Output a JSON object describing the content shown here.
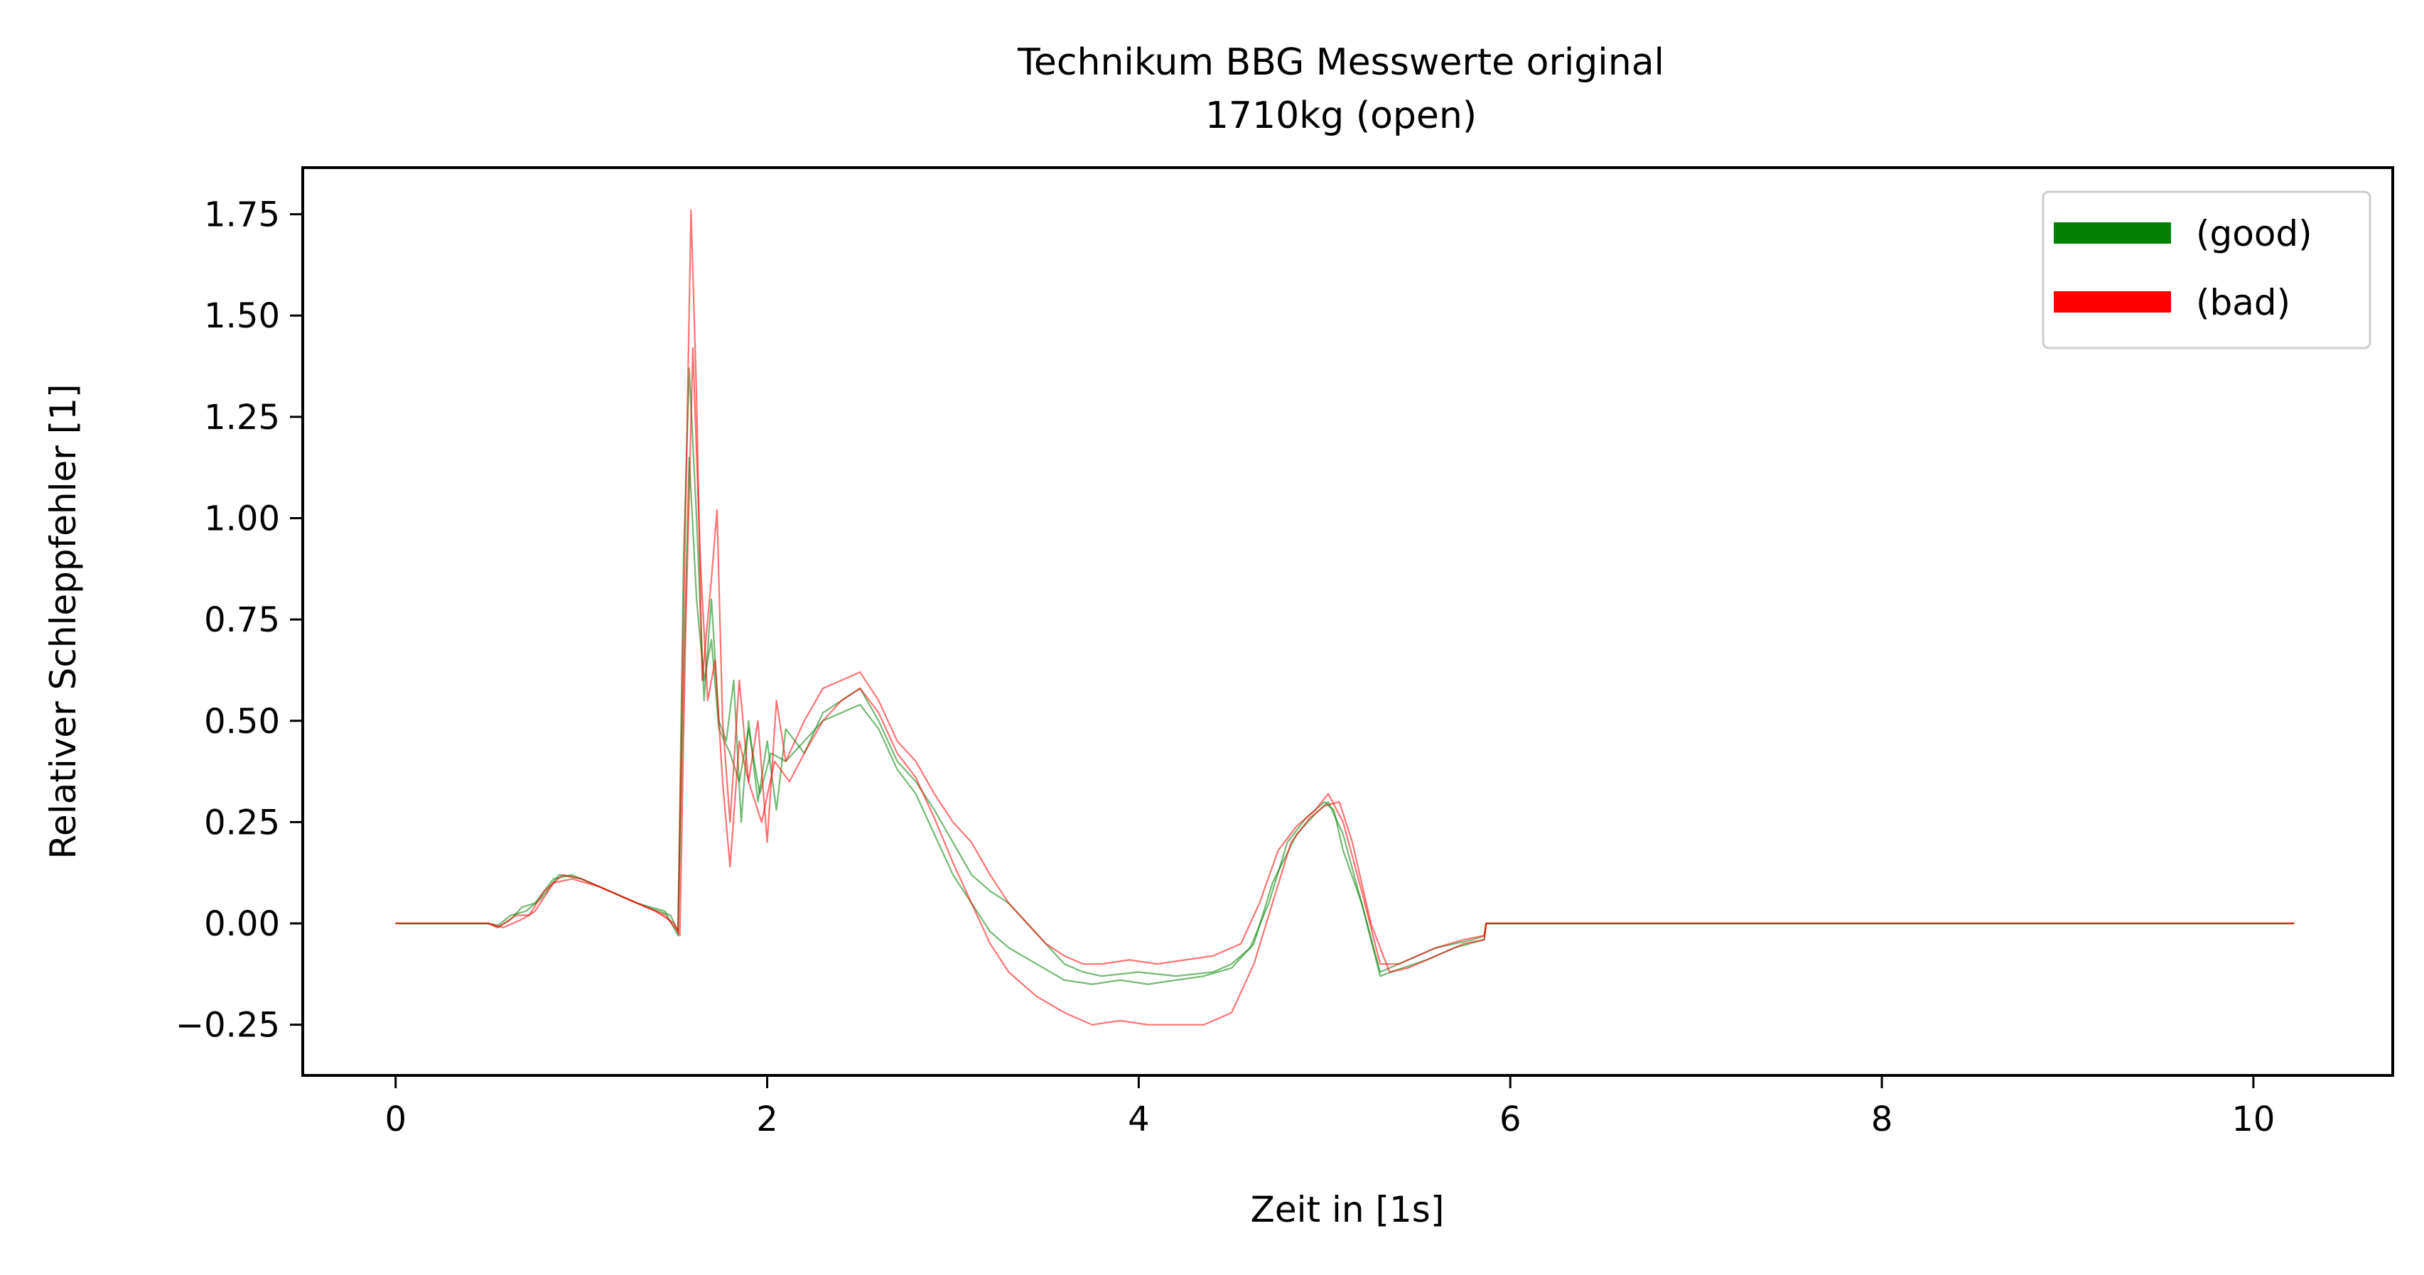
{
  "chart_data": {
    "type": "line",
    "title": "Technikum BBG Messwerte original",
    "subtitle": "1710kg (open)",
    "xlabel": "Zeit in [1s]",
    "ylabel": "Relativer Schleppfehler [1]",
    "xlim": [
      -0.5,
      10.75
    ],
    "ylim": [
      -0.375,
      1.865
    ],
    "xticks": [
      0,
      2,
      4,
      6,
      8,
      10
    ],
    "xtick_labels": [
      "0",
      "2",
      "4",
      "6",
      "8",
      "10"
    ],
    "yticks": [
      -0.25,
      0.0,
      0.25,
      0.5,
      0.75,
      1.0,
      1.25,
      1.5,
      1.75
    ],
    "ytick_labels": [
      "−0.25",
      "0.00",
      "0.25",
      "0.50",
      "0.75",
      "1.00",
      "1.25",
      "1.50",
      "1.75"
    ],
    "grid": false,
    "legend": {
      "placement": "top-right",
      "entries": [
        {
          "label": "(good)",
          "color": "#008000"
        },
        {
          "label": "(bad)",
          "color": "#ff0000"
        }
      ]
    },
    "series": [
      {
        "legend": "(good)",
        "color": "#008000",
        "points": [
          [
            0,
            0
          ],
          [
            0.5,
            0
          ],
          [
            0.55,
            -0.01
          ],
          [
            0.62,
            0.01
          ],
          [
            0.68,
            0.04
          ],
          [
            0.75,
            0.05
          ],
          [
            0.85,
            0.11
          ],
          [
            0.95,
            0.12
          ],
          [
            1.05,
            0.1
          ],
          [
            1.2,
            0.07
          ],
          [
            1.35,
            0.04
          ],
          [
            1.48,
            0.02
          ],
          [
            1.52,
            -0.02
          ],
          [
            1.55,
            0.9
          ],
          [
            1.58,
            1.37
          ],
          [
            1.62,
            1.0
          ],
          [
            1.66,
            0.55
          ],
          [
            1.7,
            0.8
          ],
          [
            1.74,
            0.5
          ],
          [
            1.78,
            0.45
          ],
          [
            1.82,
            0.6
          ],
          [
            1.86,
            0.25
          ],
          [
            1.9,
            0.5
          ],
          [
            1.95,
            0.3
          ],
          [
            2.0,
            0.45
          ],
          [
            2.05,
            0.28
          ],
          [
            2.1,
            0.48
          ],
          [
            2.2,
            0.42
          ],
          [
            2.3,
            0.52
          ],
          [
            2.4,
            0.55
          ],
          [
            2.5,
            0.58
          ],
          [
            2.6,
            0.5
          ],
          [
            2.7,
            0.4
          ],
          [
            2.8,
            0.35
          ],
          [
            2.9,
            0.28
          ],
          [
            3.0,
            0.2
          ],
          [
            3.1,
            0.12
          ],
          [
            3.2,
            0.08
          ],
          [
            3.3,
            0.05
          ],
          [
            3.4,
            0.0
          ],
          [
            3.5,
            -0.05
          ],
          [
            3.6,
            -0.1
          ],
          [
            3.7,
            -0.12
          ],
          [
            3.8,
            -0.13
          ],
          [
            4.0,
            -0.12
          ],
          [
            4.2,
            -0.13
          ],
          [
            4.4,
            -0.12
          ],
          [
            4.5,
            -0.1
          ],
          [
            4.6,
            -0.06
          ],
          [
            4.7,
            0.05
          ],
          [
            4.8,
            0.2
          ],
          [
            4.9,
            0.26
          ],
          [
            5.0,
            0.3
          ],
          [
            5.05,
            0.28
          ],
          [
            5.1,
            0.18
          ],
          [
            5.2,
            0.05
          ],
          [
            5.3,
            -0.12
          ],
          [
            5.4,
            -0.1
          ],
          [
            5.5,
            -0.08
          ],
          [
            5.6,
            -0.06
          ],
          [
            5.7,
            -0.05
          ],
          [
            5.8,
            -0.04
          ],
          [
            5.86,
            -0.03
          ],
          [
            5.87,
            0
          ],
          [
            10.22,
            0
          ]
        ]
      },
      {
        "legend": "(good)",
        "color": "#008000",
        "points": [
          [
            0,
            0
          ],
          [
            0.5,
            0
          ],
          [
            0.55,
            -0.005
          ],
          [
            0.62,
            0.02
          ],
          [
            0.7,
            0.03
          ],
          [
            0.78,
            0.06
          ],
          [
            0.88,
            0.12
          ],
          [
            1.0,
            0.11
          ],
          [
            1.15,
            0.08
          ],
          [
            1.3,
            0.05
          ],
          [
            1.45,
            0.03
          ],
          [
            1.52,
            -0.03
          ],
          [
            1.55,
            0.6
          ],
          [
            1.58,
            1.15
          ],
          [
            1.62,
            0.8
          ],
          [
            1.66,
            0.6
          ],
          [
            1.7,
            0.7
          ],
          [
            1.74,
            0.48
          ],
          [
            1.8,
            0.42
          ],
          [
            1.85,
            0.35
          ],
          [
            1.9,
            0.48
          ],
          [
            1.96,
            0.32
          ],
          [
            2.02,
            0.42
          ],
          [
            2.1,
            0.4
          ],
          [
            2.2,
            0.45
          ],
          [
            2.3,
            0.5
          ],
          [
            2.4,
            0.52
          ],
          [
            2.5,
            0.54
          ],
          [
            2.6,
            0.48
          ],
          [
            2.7,
            0.38
          ],
          [
            2.8,
            0.32
          ],
          [
            2.9,
            0.22
          ],
          [
            3.0,
            0.12
          ],
          [
            3.1,
            0.05
          ],
          [
            3.2,
            -0.02
          ],
          [
            3.3,
            -0.06
          ],
          [
            3.45,
            -0.1
          ],
          [
            3.6,
            -0.14
          ],
          [
            3.75,
            -0.15
          ],
          [
            3.9,
            -0.14
          ],
          [
            4.05,
            -0.15
          ],
          [
            4.2,
            -0.14
          ],
          [
            4.35,
            -0.13
          ],
          [
            4.5,
            -0.11
          ],
          [
            4.62,
            -0.05
          ],
          [
            4.72,
            0.1
          ],
          [
            4.85,
            0.22
          ],
          [
            4.95,
            0.27
          ],
          [
            5.02,
            0.3
          ],
          [
            5.1,
            0.22
          ],
          [
            5.2,
            0.05
          ],
          [
            5.3,
            -0.13
          ],
          [
            5.42,
            -0.11
          ],
          [
            5.55,
            -0.09
          ],
          [
            5.7,
            -0.06
          ],
          [
            5.86,
            -0.04
          ],
          [
            5.87,
            0
          ],
          [
            10.22,
            0
          ]
        ]
      },
      {
        "legend": "(bad)",
        "color": "#ff0000",
        "points": [
          [
            0,
            0
          ],
          [
            0.5,
            0
          ],
          [
            0.55,
            -0.01
          ],
          [
            0.65,
            0.02
          ],
          [
            0.72,
            0.02
          ],
          [
            0.8,
            0.08
          ],
          [
            0.9,
            0.12
          ],
          [
            1.0,
            0.11
          ],
          [
            1.15,
            0.08
          ],
          [
            1.3,
            0.05
          ],
          [
            1.45,
            0.02
          ],
          [
            1.52,
            -0.02
          ],
          [
            1.56,
            1.0
          ],
          [
            1.59,
            1.76
          ],
          [
            1.62,
            1.3
          ],
          [
            1.65,
            0.6
          ],
          [
            1.7,
            0.85
          ],
          [
            1.73,
            1.02
          ],
          [
            1.76,
            0.5
          ],
          [
            1.8,
            0.25
          ],
          [
            1.85,
            0.6
          ],
          [
            1.9,
            0.35
          ],
          [
            1.95,
            0.5
          ],
          [
            2.0,
            0.2
          ],
          [
            2.05,
            0.55
          ],
          [
            2.1,
            0.4
          ],
          [
            2.2,
            0.5
          ],
          [
            2.3,
            0.58
          ],
          [
            2.4,
            0.6
          ],
          [
            2.5,
            0.62
          ],
          [
            2.6,
            0.55
          ],
          [
            2.7,
            0.45
          ],
          [
            2.8,
            0.4
          ],
          [
            2.9,
            0.32
          ],
          [
            3.0,
            0.25
          ],
          [
            3.1,
            0.2
          ],
          [
            3.2,
            0.12
          ],
          [
            3.3,
            0.05
          ],
          [
            3.4,
            0.0
          ],
          [
            3.5,
            -0.05
          ],
          [
            3.6,
            -0.08
          ],
          [
            3.7,
            -0.1
          ],
          [
            3.8,
            -0.1
          ],
          [
            3.95,
            -0.09
          ],
          [
            4.1,
            -0.1
          ],
          [
            4.25,
            -0.09
          ],
          [
            4.4,
            -0.08
          ],
          [
            4.55,
            -0.05
          ],
          [
            4.65,
            0.05
          ],
          [
            4.75,
            0.18
          ],
          [
            4.85,
            0.24
          ],
          [
            4.95,
            0.28
          ],
          [
            5.02,
            0.32
          ],
          [
            5.1,
            0.25
          ],
          [
            5.2,
            0.08
          ],
          [
            5.3,
            -0.1
          ],
          [
            5.4,
            -0.1
          ],
          [
            5.5,
            -0.08
          ],
          [
            5.6,
            -0.06
          ],
          [
            5.75,
            -0.04
          ],
          [
            5.86,
            -0.03
          ],
          [
            5.87,
            0
          ],
          [
            10.22,
            0
          ]
        ]
      },
      {
        "legend": "(bad)",
        "color": "#ff0000",
        "points": [
          [
            0,
            0
          ],
          [
            0.5,
            0
          ],
          [
            0.58,
            -0.01
          ],
          [
            0.68,
            0.01
          ],
          [
            0.75,
            0.03
          ],
          [
            0.85,
            0.1
          ],
          [
            0.95,
            0.11
          ],
          [
            1.1,
            0.09
          ],
          [
            1.25,
            0.06
          ],
          [
            1.4,
            0.03
          ],
          [
            1.5,
            0.0
          ],
          [
            1.53,
            -0.03
          ],
          [
            1.56,
            0.7
          ],
          [
            1.6,
            1.42
          ],
          [
            1.64,
            0.9
          ],
          [
            1.68,
            0.55
          ],
          [
            1.72,
            0.65
          ],
          [
            1.76,
            0.35
          ],
          [
            1.8,
            0.14
          ],
          [
            1.85,
            0.45
          ],
          [
            1.9,
            0.35
          ],
          [
            1.97,
            0.25
          ],
          [
            2.04,
            0.4
          ],
          [
            2.12,
            0.35
          ],
          [
            2.2,
            0.42
          ],
          [
            2.3,
            0.5
          ],
          [
            2.4,
            0.55
          ],
          [
            2.5,
            0.58
          ],
          [
            2.6,
            0.52
          ],
          [
            2.7,
            0.42
          ],
          [
            2.8,
            0.36
          ],
          [
            2.9,
            0.26
          ],
          [
            3.0,
            0.15
          ],
          [
            3.1,
            0.05
          ],
          [
            3.2,
            -0.05
          ],
          [
            3.3,
            -0.12
          ],
          [
            3.45,
            -0.18
          ],
          [
            3.6,
            -0.22
          ],
          [
            3.75,
            -0.25
          ],
          [
            3.9,
            -0.24
          ],
          [
            4.05,
            -0.25
          ],
          [
            4.2,
            -0.25
          ],
          [
            4.35,
            -0.25
          ],
          [
            4.5,
            -0.22
          ],
          [
            4.62,
            -0.1
          ],
          [
            4.72,
            0.05
          ],
          [
            4.82,
            0.2
          ],
          [
            4.92,
            0.26
          ],
          [
            5.0,
            0.29
          ],
          [
            5.08,
            0.3
          ],
          [
            5.15,
            0.2
          ],
          [
            5.25,
            0.0
          ],
          [
            5.35,
            -0.12
          ],
          [
            5.45,
            -0.11
          ],
          [
            5.6,
            -0.08
          ],
          [
            5.75,
            -0.05
          ],
          [
            5.86,
            -0.04
          ],
          [
            5.87,
            0
          ],
          [
            10.22,
            0
          ]
        ]
      }
    ]
  }
}
